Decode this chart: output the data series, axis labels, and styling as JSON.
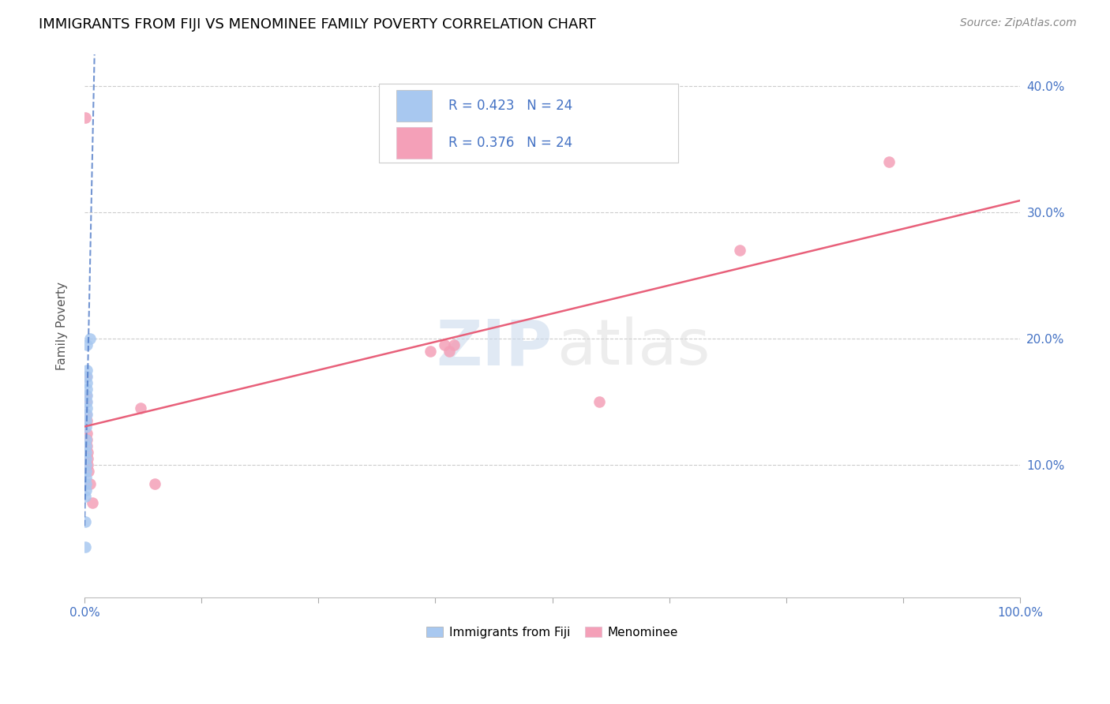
{
  "title": "IMMIGRANTS FROM FIJI VS MENOMINEE FAMILY POVERTY CORRELATION CHART",
  "source": "Source: ZipAtlas.com",
  "ylabel": "Family Poverty",
  "y_ticks": [
    0.0,
    0.1,
    0.2,
    0.3,
    0.4
  ],
  "y_tick_labels": [
    "",
    "10.0%",
    "20.0%",
    "30.0%",
    "40.0%"
  ],
  "x_tick_positions": [
    0.0,
    0.125,
    0.25,
    0.375,
    0.5,
    0.625,
    0.75,
    0.875,
    1.0
  ],
  "xlim": [
    0.0,
    1.0
  ],
  "ylim": [
    -0.005,
    0.425
  ],
  "fiji_R": 0.423,
  "fiji_N": 24,
  "menominee_R": 0.376,
  "menominee_N": 24,
  "fiji_color": "#a8c8f0",
  "menominee_color": "#f4a0b8",
  "fiji_line_color": "#4472c4",
  "menominee_line_color": "#e8607a",
  "legend_label_fiji": "Immigrants from Fiji",
  "legend_label_menominee": "Menominee",
  "watermark_zip": "ZIP",
  "watermark_atlas": "atlas",
  "fiji_x": [
    0.001,
    0.001,
    0.0012,
    0.0014,
    0.0015,
    0.0015,
    0.0016,
    0.0016,
    0.0017,
    0.0018,
    0.0018,
    0.0019,
    0.002,
    0.002,
    0.0021,
    0.0022,
    0.0022,
    0.0023,
    0.0024,
    0.0025,
    0.0026,
    0.0027,
    0.0028,
    0.006
  ],
  "fiji_y": [
    0.035,
    0.055,
    0.075,
    0.08,
    0.085,
    0.09,
    0.095,
    0.1,
    0.105,
    0.11,
    0.115,
    0.12,
    0.13,
    0.135,
    0.14,
    0.145,
    0.15,
    0.155,
    0.16,
    0.165,
    0.17,
    0.175,
    0.195,
    0.2
  ],
  "menominee_x": [
    0.001,
    0.0014,
    0.0016,
    0.0018,
    0.002,
    0.0022,
    0.0024,
    0.0026,
    0.0028,
    0.003,
    0.0032,
    0.0035,
    0.0038,
    0.006,
    0.008,
    0.06,
    0.075,
    0.37,
    0.385,
    0.39,
    0.395,
    0.55,
    0.7,
    0.86
  ],
  "menominee_y": [
    0.375,
    0.17,
    0.155,
    0.15,
    0.14,
    0.135,
    0.125,
    0.12,
    0.115,
    0.11,
    0.105,
    0.1,
    0.095,
    0.085,
    0.07,
    0.145,
    0.085,
    0.19,
    0.195,
    0.19,
    0.195,
    0.15,
    0.27,
    0.34
  ]
}
